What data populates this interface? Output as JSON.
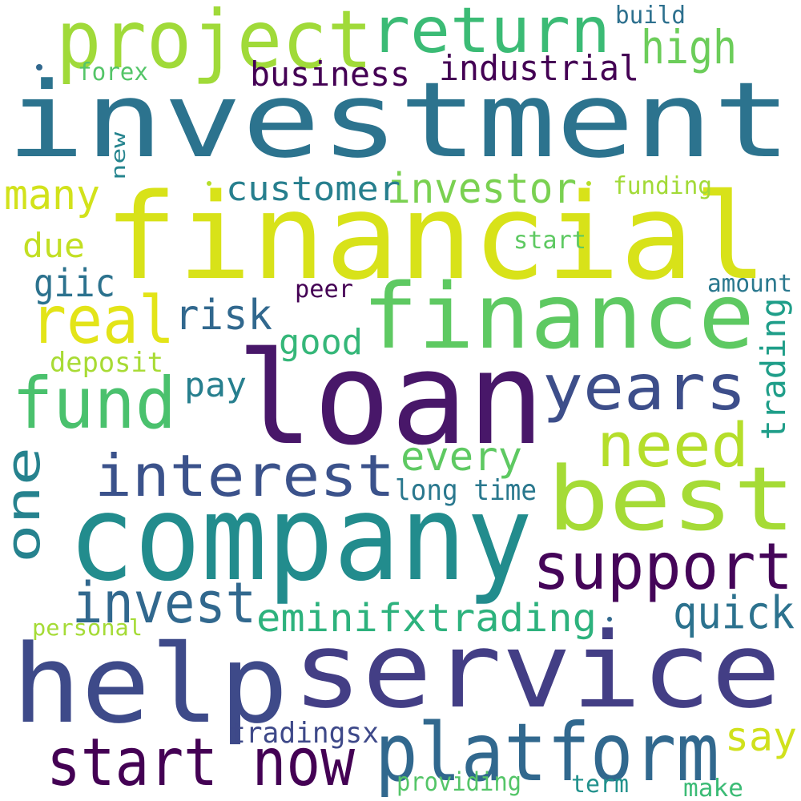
{
  "words": [
    {
      "id": "investment",
      "text": "investment",
      "color": "#2c738e"
    },
    {
      "id": "financial",
      "text": "financial",
      "color": "#d8e219"
    },
    {
      "id": "loan",
      "text": "loan",
      "color": "#481769"
    },
    {
      "id": "company",
      "text": "company",
      "color": "#228c8d"
    },
    {
      "id": "service",
      "text": "service",
      "color": "#433e85"
    },
    {
      "id": "help",
      "text": "help",
      "color": "#3e4a89"
    },
    {
      "id": "finance",
      "text": "finance",
      "color": "#5ec962"
    },
    {
      "id": "best",
      "text": "best",
      "color": "#a5db36"
    },
    {
      "id": "project",
      "text": "project",
      "color": "#a0da39"
    },
    {
      "id": "return",
      "text": "return",
      "color": "#3bbb75"
    },
    {
      "id": "platform",
      "text": "platform",
      "color": "#31688e"
    },
    {
      "id": "start-now",
      "text": "start now",
      "color": "#440154"
    },
    {
      "id": "interest",
      "text": "interest",
      "color": "#3b528b"
    },
    {
      "id": "years",
      "text": "years",
      "color": "#3d4e8a"
    },
    {
      "id": "fund",
      "text": "fund",
      "color": "#4ac16d"
    },
    {
      "id": "real",
      "text": "real",
      "color": "#e3e418"
    },
    {
      "id": "support",
      "text": "support",
      "color": "#450559"
    },
    {
      "id": "one",
      "text": "one",
      "color": "#26828e"
    },
    {
      "id": "need",
      "text": "need",
      "color": "#b5de2b"
    },
    {
      "id": "invest",
      "text": "invest",
      "color": "#31688e"
    },
    {
      "id": "high",
      "text": "high",
      "color": "#6ccd5a"
    },
    {
      "id": "investor",
      "text": "investor",
      "color": "#7ad151"
    },
    {
      "id": "eminifxtrading",
      "text": "eminifxtrading",
      "color": "#2db27d"
    },
    {
      "id": "quick",
      "text": "quick",
      "color": "#2c728e"
    },
    {
      "id": "business",
      "text": "business",
      "color": "#440154"
    },
    {
      "id": "industrial",
      "text": "industrial",
      "color": "#440154"
    },
    {
      "id": "customer",
      "text": "customer",
      "color": "#277f8e"
    },
    {
      "id": "many",
      "text": "many",
      "color": "#d2e21b"
    },
    {
      "id": "risk",
      "text": "risk",
      "color": "#31688e"
    },
    {
      "id": "every",
      "text": "every",
      "color": "#5ec962"
    },
    {
      "id": "giic",
      "text": "giic",
      "color": "#2c728e"
    },
    {
      "id": "good",
      "text": "good",
      "color": "#35b779"
    },
    {
      "id": "pay",
      "text": "pay",
      "color": "#277f8e"
    },
    {
      "id": "due",
      "text": "due",
      "color": "#c2df23"
    },
    {
      "id": "tradingsx",
      "text": "tradingsx",
      "color": "#3e4989"
    },
    {
      "id": "say",
      "text": "say",
      "color": "#d0e11c"
    },
    {
      "id": "long-time",
      "text": "long time",
      "color": "#2a788e"
    },
    {
      "id": "trading",
      "text": "trading",
      "color": "#1f9e89"
    },
    {
      "id": "deposit",
      "text": "deposit",
      "color": "#a8db34"
    },
    {
      "id": "build",
      "text": "build",
      "color": "#2d708e"
    },
    {
      "id": "forex",
      "text": "forex",
      "color": "#54c568"
    },
    {
      "id": "funding",
      "text": "funding",
      "color": "#a2da37"
    },
    {
      "id": "start",
      "text": "start",
      "color": "#5ec962"
    },
    {
      "id": "amount",
      "text": "amount",
      "color": "#2a788e"
    },
    {
      "id": "peer",
      "text": "peer",
      "color": "#440154"
    },
    {
      "id": "new",
      "text": "new",
      "color": "#25848e"
    },
    {
      "id": "personal",
      "text": "personal",
      "color": "#a5db36"
    },
    {
      "id": "providing",
      "text": "providing",
      "color": "#54c568"
    },
    {
      "id": "term",
      "text": "term",
      "color": "#21918c"
    },
    {
      "id": "make",
      "text": "make",
      "color": "#3bbb75"
    }
  ]
}
